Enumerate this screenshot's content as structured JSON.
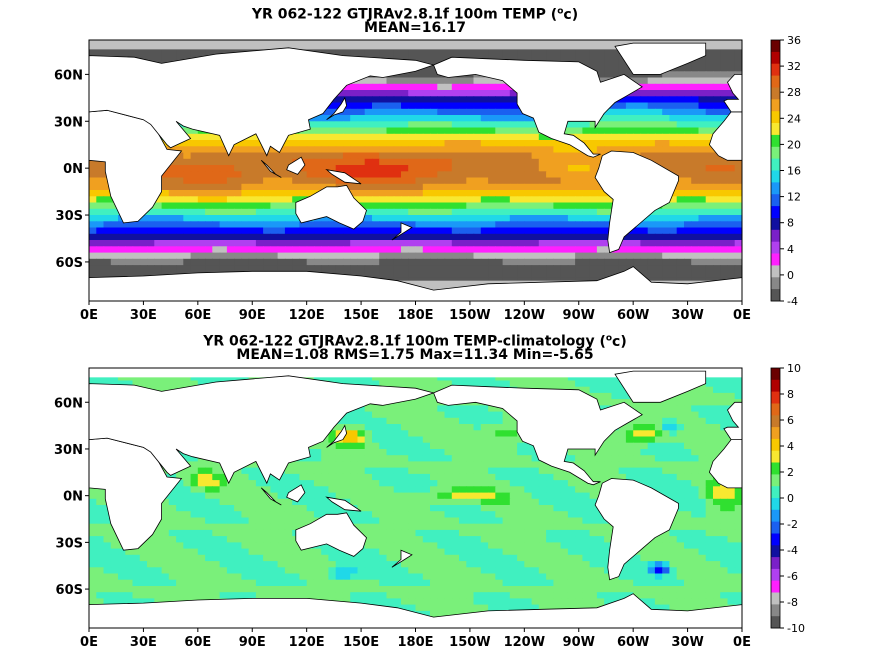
{
  "chart_data": [
    {
      "type": "heatmap",
      "title": "YR 062-122 GTJRAv2.8.1f 100m TEMP",
      "units": "c",
      "subtitle": "MEAN=16.17",
      "x_ticks": [
        "0E",
        "30E",
        "60E",
        "90E",
        "120E",
        "150E",
        "180E",
        "150W",
        "120W",
        "90W",
        "60W",
        "30W",
        "0E"
      ],
      "y_ticks": [
        "60N",
        "30N",
        "0N",
        "30S",
        "60S"
      ],
      "colorbar": {
        "ticks": [
          "36",
          "32",
          "28",
          "24",
          "20",
          "16",
          "12",
          "8",
          "4",
          "0",
          "-4"
        ],
        "colors": [
          "#6a0000",
          "#b00000",
          "#e03010",
          "#e06818",
          "#c87a2a",
          "#f0a020",
          "#f8c800",
          "#f8e830",
          "#30e030",
          "#7af07a",
          "#40f0c0",
          "#20d8e8",
          "#1a98f8",
          "#1a60f0",
          "#0000ff",
          "#1010a0",
          "#7a20c8",
          "#b040f0",
          "#ff20ff",
          "#c0c0c0",
          "#888888",
          "#555555"
        ]
      },
      "scale_min": -4,
      "scale_max": 36
    },
    {
      "type": "heatmap",
      "title": "YR 062-122 GTJRAv2.8.1f 100m TEMP-climatology",
      "units": "c",
      "subtitle": "MEAN=1.08   RMS=1.75   Max=11.34   Min=-5.65",
      "x_ticks": [
        "0E",
        "30E",
        "60E",
        "90E",
        "120E",
        "150E",
        "180E",
        "150W",
        "120W",
        "90W",
        "60W",
        "30W",
        "0E"
      ],
      "y_ticks": [
        "60N",
        "30N",
        "0N",
        "30S",
        "60S"
      ],
      "colorbar": {
        "ticks": [
          "10",
          "8",
          "6",
          "4",
          "2",
          "0",
          "-2",
          "-4",
          "-6",
          "-8",
          "-10"
        ],
        "colors": [
          "#6a0000",
          "#b00000",
          "#e03010",
          "#e06818",
          "#c87a2a",
          "#f0a020",
          "#f8c800",
          "#f8e830",
          "#30e030",
          "#7af07a",
          "#40f0c0",
          "#20d8e8",
          "#1a98f8",
          "#1a60f0",
          "#0000ff",
          "#1010a0",
          "#7a20c8",
          "#b040f0",
          "#ff20ff",
          "#c0c0c0",
          "#888888",
          "#555555"
        ]
      },
      "scale_min": -10,
      "scale_max": 10
    }
  ]
}
